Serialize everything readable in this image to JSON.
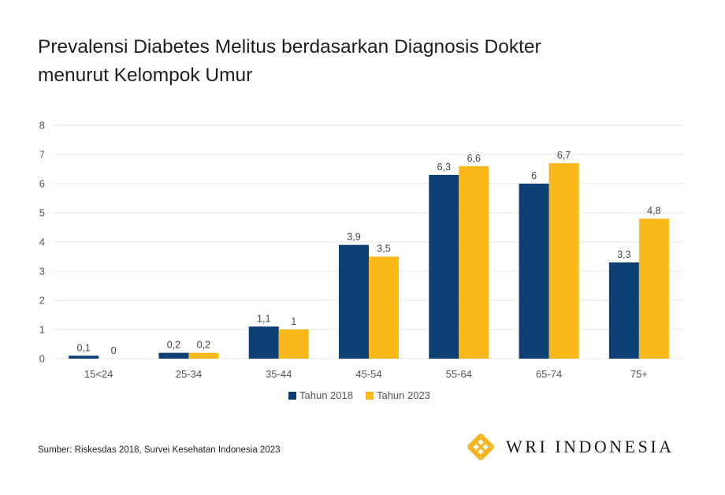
{
  "chart_data": {
    "type": "bar",
    "title": "Prevalensi Diabetes Melitus berdasarkan Diagnosis Dokter menurut Kelompok Umur",
    "title_lines": [
      "Prevalensi Diabetes Melitus berdasarkan Diagnosis Dokter",
      "menurut Kelompok Umur"
    ],
    "categories": [
      "15<24",
      "25-34",
      "35-44",
      "45-54",
      "55-64",
      "65-74",
      "75+"
    ],
    "series": [
      {
        "name": "Tahun 2018",
        "color": "#0c3f73",
        "values": [
          0.1,
          0.2,
          1.1,
          3.9,
          6.3,
          6.0,
          3.3
        ],
        "labels": [
          "0,1",
          "0,2",
          "1,1",
          "3,9",
          "6,3",
          "6",
          "3,3"
        ]
      },
      {
        "name": "Tahun 2023",
        "color": "#fbb919",
        "values": [
          0,
          0.2,
          1.0,
          3.5,
          6.6,
          6.7,
          4.8
        ],
        "labels": [
          "0",
          "0,2",
          "1",
          "3,5",
          "6,6",
          "6,7",
          "4,8"
        ]
      }
    ],
    "xlabel": "",
    "ylabel": "",
    "ylim": [
      0,
      8
    ],
    "yticks": [
      "0",
      "1",
      "2",
      "3",
      "4",
      "5",
      "6",
      "7",
      "8"
    ],
    "grid": true,
    "legend": "bottom-center"
  },
  "footer": {
    "source": "Sumber: Riskesdas 2018, Survei Kesehatan Indonesia 2023",
    "logo_text": "WRI INDONESIA",
    "logo_color": "#f4b41a"
  }
}
